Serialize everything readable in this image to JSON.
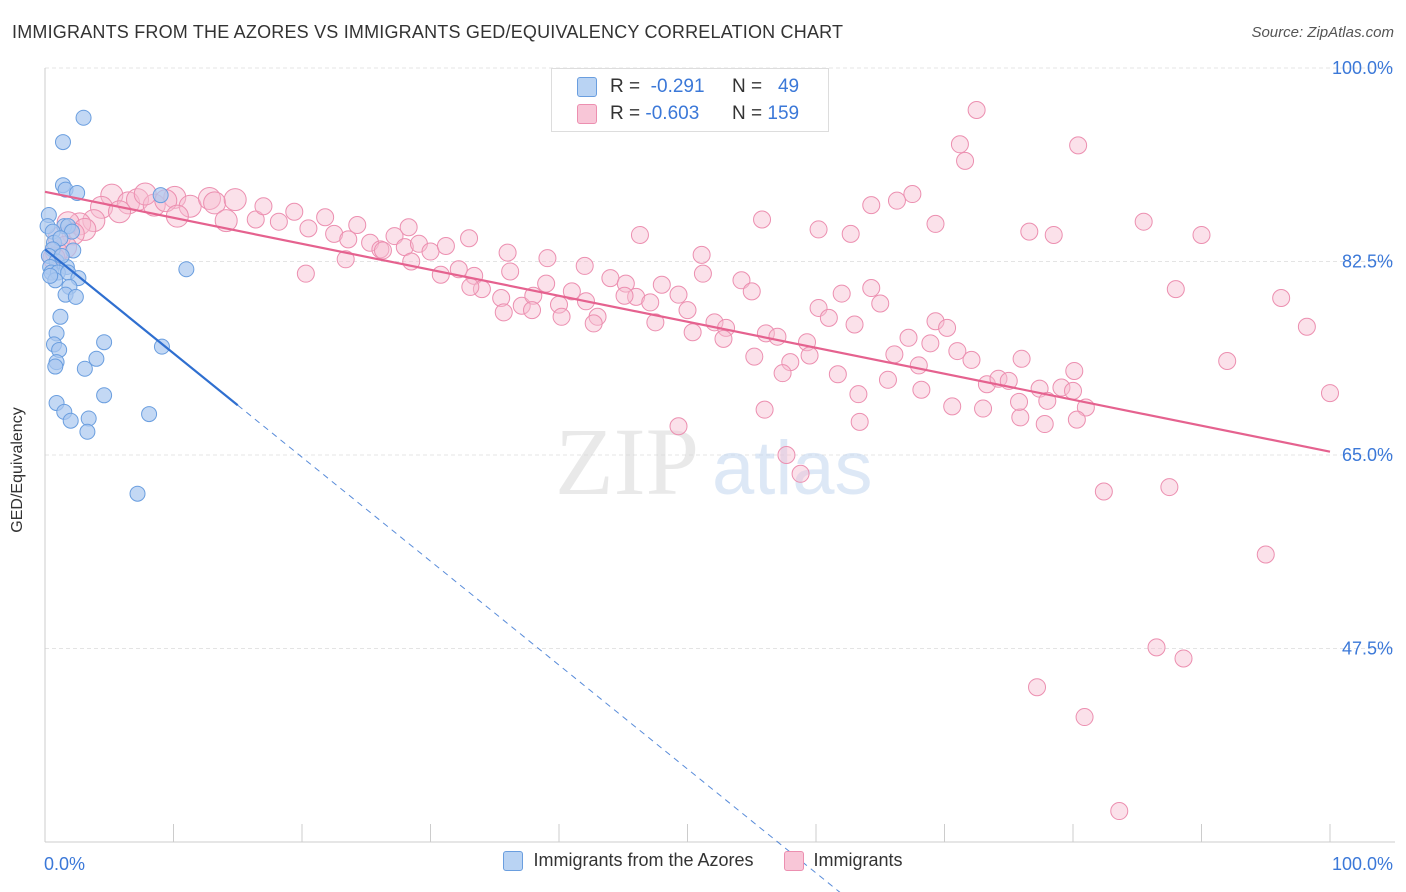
{
  "header": {
    "title": "IMMIGRANTS FROM THE AZORES VS IMMIGRANTS GED/EQUIVALENCY CORRELATION CHART",
    "source": "Source: ZipAtlas.com"
  },
  "legend_top": {
    "rows": [
      {
        "r_label": "R =",
        "r_value": "-0.291",
        "n_label": "N =",
        "n_value": "49"
      },
      {
        "r_label": "R =",
        "r_value": "-0.603",
        "n_label": "N =",
        "n_value": "159"
      }
    ]
  },
  "legend_bottom": {
    "series_a": "Immigrants from the Azores",
    "series_b": "Immigrants"
  },
  "watermark": {
    "zip": "ZIP",
    "atlas": "atlas"
  },
  "colors": {
    "blue_fill": "#a9c8f0",
    "blue_stroke": "#6a9edf",
    "blue_line": "#2f6fd0",
    "pink_fill": "#f6bcd0",
    "pink_stroke": "#ec8fb0",
    "pink_line": "#e5628f",
    "axis_label": "#3b78d8",
    "grid": "#e4e4e4"
  },
  "chart_data": {
    "type": "scatter",
    "title": "IMMIGRANTS FROM THE AZORES VS IMMIGRANTS GED/EQUIVALENCY CORRELATION CHART",
    "xlabel": "",
    "ylabel": "GED/Equivalency",
    "xlim": [
      0,
      100
    ],
    "ylim": [
      30,
      100
    ],
    "x_tick_labels": [
      "0.0%",
      "100.0%"
    ],
    "y_ticks": [
      47.5,
      65.0,
      82.5,
      100.0
    ],
    "y_tick_labels": [
      "47.5%",
      "65.0%",
      "82.5%",
      "100.0%"
    ],
    "grid": true,
    "legend_position": "top-center",
    "series": [
      {
        "name": "Immigrants from the Azores",
        "r": -0.291,
        "n": 49,
        "trend": {
          "x0": 0.0,
          "y0": 83.6,
          "x1": 15.0,
          "y1": 69.5,
          "dashed_to_x": 64.0
        },
        "points": [
          [
            3.0,
            95.5
          ],
          [
            1.4,
            93.3
          ],
          [
            1.4,
            89.4
          ],
          [
            1.6,
            89.0
          ],
          [
            2.5,
            88.7
          ],
          [
            0.3,
            86.7
          ],
          [
            0.2,
            85.7
          ],
          [
            1.5,
            85.7
          ],
          [
            1.8,
            85.7
          ],
          [
            0.6,
            85.2
          ],
          [
            2.1,
            85.2
          ],
          [
            0.7,
            84.2
          ],
          [
            1.2,
            84.6
          ],
          [
            0.6,
            83.6
          ],
          [
            2.2,
            83.5
          ],
          [
            0.3,
            83.0
          ],
          [
            0.9,
            82.5
          ],
          [
            0.4,
            82.0
          ],
          [
            1.7,
            82.0
          ],
          [
            0.5,
            81.5
          ],
          [
            1.0,
            81.5
          ],
          [
            1.8,
            81.5
          ],
          [
            2.6,
            81.0
          ],
          [
            0.8,
            80.8
          ],
          [
            1.9,
            80.2
          ],
          [
            1.6,
            79.5
          ],
          [
            2.4,
            79.3
          ],
          [
            9.0,
            88.5
          ],
          [
            11.0,
            81.8
          ],
          [
            1.2,
            77.5
          ],
          [
            0.9,
            76.0
          ],
          [
            0.7,
            75.0
          ],
          [
            1.1,
            74.5
          ],
          [
            4.6,
            75.2
          ],
          [
            9.1,
            74.8
          ],
          [
            0.9,
            73.4
          ],
          [
            0.8,
            73.0
          ],
          [
            4.0,
            73.7
          ],
          [
            3.1,
            72.8
          ],
          [
            4.6,
            70.4
          ],
          [
            0.9,
            69.7
          ],
          [
            1.5,
            68.9
          ],
          [
            3.4,
            68.3
          ],
          [
            8.1,
            68.7
          ],
          [
            2.0,
            68.1
          ],
          [
            3.3,
            67.1
          ],
          [
            7.2,
            61.5
          ],
          [
            0.4,
            81.2
          ],
          [
            1.3,
            83.0
          ]
        ]
      },
      {
        "name": "Immigrants",
        "r": -0.603,
        "n": 159,
        "trend": {
          "x0": 0.0,
          "y0": 88.8,
          "x1": 100.0,
          "y1": 65.3
        },
        "points": [
          [
            5.2,
            88.5
          ],
          [
            6.5,
            87.8
          ],
          [
            7.2,
            88.1
          ],
          [
            8.5,
            87.6
          ],
          [
            10.1,
            88.3
          ],
          [
            11.3,
            87.5
          ],
          [
            12.8,
            88.2
          ],
          [
            4.4,
            87.4
          ],
          [
            5.8,
            87.0
          ],
          [
            7.8,
            88.6
          ],
          [
            9.4,
            88.0
          ],
          [
            13.2,
            87.8
          ],
          [
            14.8,
            88.1
          ],
          [
            3.8,
            86.2
          ],
          [
            2.7,
            85.9
          ],
          [
            1.8,
            86.0
          ],
          [
            3.1,
            85.4
          ],
          [
            2.2,
            85.0
          ],
          [
            1.1,
            84.6
          ],
          [
            1.6,
            83.8
          ],
          [
            0.9,
            83.3
          ],
          [
            0.7,
            82.8
          ],
          [
            10.3,
            86.6
          ],
          [
            14.1,
            86.2
          ],
          [
            16.4,
            86.3
          ],
          [
            17.0,
            87.5
          ],
          [
            18.2,
            86.1
          ],
          [
            19.4,
            87.0
          ],
          [
            20.5,
            85.5
          ],
          [
            21.8,
            86.5
          ],
          [
            22.5,
            85.0
          ],
          [
            23.6,
            84.5
          ],
          [
            24.3,
            85.8
          ],
          [
            25.3,
            84.2
          ],
          [
            26.1,
            83.6
          ],
          [
            27.2,
            84.8
          ],
          [
            28.0,
            83.8
          ],
          [
            29.1,
            84.1
          ],
          [
            30.0,
            83.4
          ],
          [
            31.2,
            83.9
          ],
          [
            32.2,
            81.8
          ],
          [
            33.4,
            81.2
          ],
          [
            34.0,
            80.0
          ],
          [
            35.5,
            79.2
          ],
          [
            36.2,
            81.6
          ],
          [
            37.1,
            78.5
          ],
          [
            38.0,
            79.4
          ],
          [
            39.0,
            80.5
          ],
          [
            40.0,
            78.6
          ],
          [
            41.0,
            79.8
          ],
          [
            42.1,
            78.9
          ],
          [
            43.0,
            77.5
          ],
          [
            44.0,
            81.0
          ],
          [
            45.2,
            80.5
          ],
          [
            46.0,
            79.3
          ],
          [
            47.1,
            78.8
          ],
          [
            48.0,
            80.4
          ],
          [
            49.3,
            79.5
          ],
          [
            50.0,
            78.1
          ],
          [
            51.2,
            81.4
          ],
          [
            52.1,
            77.0
          ],
          [
            53.0,
            76.5
          ],
          [
            54.2,
            80.8
          ],
          [
            55.0,
            79.8
          ],
          [
            56.1,
            76.0
          ],
          [
            57.0,
            75.7
          ],
          [
            58.0,
            73.4
          ],
          [
            59.3,
            75.2
          ],
          [
            60.2,
            78.3
          ],
          [
            61.0,
            77.4
          ],
          [
            62.0,
            79.6
          ],
          [
            63.0,
            76.8
          ],
          [
            64.3,
            80.1
          ],
          [
            65.0,
            78.7
          ],
          [
            66.1,
            74.1
          ],
          [
            67.2,
            75.6
          ],
          [
            68.0,
            73.1
          ],
          [
            69.3,
            77.1
          ],
          [
            70.2,
            76.5
          ],
          [
            71.0,
            74.4
          ],
          [
            72.1,
            73.6
          ],
          [
            73.3,
            71.4
          ],
          [
            74.2,
            71.9
          ],
          [
            75.0,
            71.7
          ],
          [
            76.0,
            73.7
          ],
          [
            77.4,
            71.0
          ],
          [
            78.0,
            69.9
          ],
          [
            79.1,
            71.1
          ],
          [
            80.0,
            70.8
          ],
          [
            81.0,
            69.3
          ],
          [
            20.3,
            81.4
          ],
          [
            23.4,
            82.7
          ],
          [
            26.3,
            83.5
          ],
          [
            28.5,
            82.5
          ],
          [
            30.8,
            81.3
          ],
          [
            33.1,
            80.2
          ],
          [
            35.7,
            77.9
          ],
          [
            37.9,
            78.1
          ],
          [
            40.2,
            77.5
          ],
          [
            42.7,
            76.9
          ],
          [
            45.1,
            79.4
          ],
          [
            47.5,
            77.0
          ],
          [
            50.4,
            76.1
          ],
          [
            52.8,
            75.5
          ],
          [
            55.2,
            73.9
          ],
          [
            57.4,
            72.4
          ],
          [
            59.5,
            74.0
          ],
          [
            61.7,
            72.3
          ],
          [
            63.3,
            70.5
          ],
          [
            65.6,
            71.8
          ],
          [
            68.2,
            70.9
          ],
          [
            70.6,
            69.4
          ],
          [
            73.0,
            69.2
          ],
          [
            75.9,
            68.4
          ],
          [
            77.8,
            67.8
          ],
          [
            80.3,
            68.2
          ],
          [
            28.3,
            85.6
          ],
          [
            33.0,
            84.6
          ],
          [
            36.0,
            83.3
          ],
          [
            39.1,
            82.8
          ],
          [
            42.0,
            82.1
          ],
          [
            46.3,
            84.9
          ],
          [
            51.1,
            83.1
          ],
          [
            55.8,
            86.3
          ],
          [
            60.2,
            85.4
          ],
          [
            62.7,
            85.0
          ],
          [
            64.3,
            87.6
          ],
          [
            67.5,
            88.6
          ],
          [
            69.3,
            85.9
          ],
          [
            76.6,
            85.2
          ],
          [
            78.5,
            84.9
          ],
          [
            85.5,
            86.1
          ],
          [
            71.2,
            93.1
          ],
          [
            66.3,
            88.0
          ],
          [
            71.6,
            91.6
          ],
          [
            80.4,
            93.0
          ],
          [
            90.0,
            84.9
          ],
          [
            88.0,
            80.0
          ],
          [
            92.0,
            73.5
          ],
          [
            96.2,
            79.2
          ],
          [
            98.2,
            76.6
          ],
          [
            80.1,
            72.6
          ],
          [
            75.8,
            69.8
          ],
          [
            68.9,
            75.1
          ],
          [
            63.4,
            68.0
          ],
          [
            56.0,
            69.1
          ],
          [
            49.3,
            67.6
          ],
          [
            72.5,
            96.2
          ],
          [
            82.4,
            61.7
          ],
          [
            87.5,
            62.1
          ],
          [
            95.0,
            56.0
          ],
          [
            86.5,
            47.6
          ],
          [
            88.6,
            46.6
          ],
          [
            80.9,
            41.3
          ],
          [
            77.2,
            44.0
          ],
          [
            83.6,
            32.8
          ],
          [
            58.8,
            63.3
          ],
          [
            57.7,
            65.0
          ],
          [
            100.0,
            70.6
          ]
        ]
      }
    ]
  }
}
